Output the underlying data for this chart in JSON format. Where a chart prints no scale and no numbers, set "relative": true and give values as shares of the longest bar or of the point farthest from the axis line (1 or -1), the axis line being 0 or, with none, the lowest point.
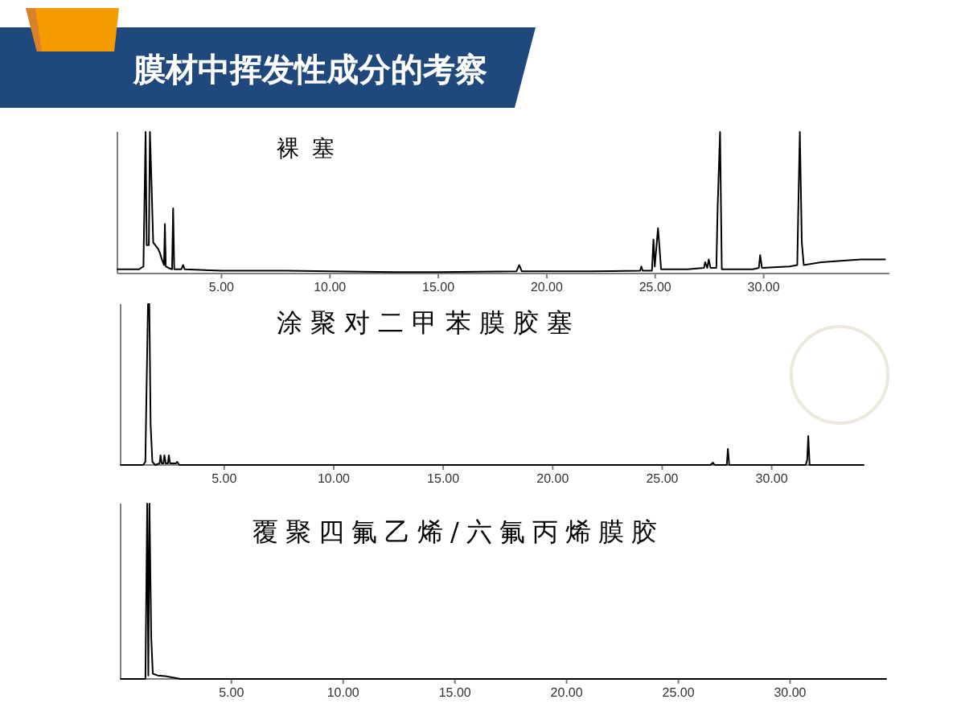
{
  "chart_data": [
    {
      "type": "other",
      "title": "膜材中挥发性成分的考察"
    },
    {
      "type": "line",
      "title": "裸塞",
      "relative": true,
      "xlim": [
        0.2,
        35.8
      ],
      "xticks": [
        {
          "value": 5,
          "label": "5.00"
        },
        {
          "value": 10,
          "label": "10.00"
        },
        {
          "value": 15,
          "label": "15.00"
        },
        {
          "value": 20,
          "label": "20.00"
        },
        {
          "value": 25,
          "label": "25.00"
        },
        {
          "value": 30,
          "label": "30.00"
        }
      ],
      "x": [
        0.2,
        1.2,
        1.4,
        1.5,
        1.55,
        1.65,
        1.7,
        1.78,
        1.85,
        1.95,
        2.05,
        2.15,
        2.25,
        2.35,
        2.39,
        2.43,
        2.55,
        2.72,
        2.77,
        2.82,
        3.15,
        3.23,
        3.3,
        5,
        8,
        10,
        13,
        15,
        18.6,
        18.73,
        18.85,
        22,
        24.3,
        24.36,
        24.42,
        24.85,
        24.92,
        24.98,
        25.13,
        25.2,
        25.27,
        26.5,
        27.25,
        27.3,
        27.4,
        27.47,
        27.55,
        27.82,
        27.88,
        27.99,
        28.07,
        29.5,
        29.78,
        29.84,
        29.92,
        31.2,
        31.55,
        31.59,
        31.67,
        31.76,
        31.85,
        32.66,
        33.55,
        34.5,
        35.6
      ],
      "series": [
        {
          "color": "#000000",
          "values": [
            0.03,
            0.03,
            0.05,
            1.0,
            0.2,
            0.2,
            1.0,
            0.6,
            0.22,
            0.2,
            0.18,
            0.15,
            0.1,
            0.06,
            0.35,
            0.05,
            0.04,
            0.03,
            0.46,
            0.03,
            0.03,
            0.06,
            0.03,
            0.02,
            0.02,
            0.015,
            0.01,
            0.01,
            0.015,
            0.06,
            0.015,
            0.015,
            0.02,
            0.05,
            0.02,
            0.02,
            0.24,
            0.05,
            0.32,
            0.18,
            0.03,
            0.03,
            0.04,
            0.08,
            0.04,
            0.1,
            0.04,
            0.04,
            0.47,
            1.0,
            0.03,
            0.03,
            0.04,
            0.13,
            0.04,
            0.05,
            0.06,
            0.39,
            1.0,
            0.22,
            0.06,
            0.08,
            0.09,
            0.1,
            0.1
          ]
        }
      ]
    },
    {
      "type": "line",
      "title": "涂聚对二甲苯膜胶塞",
      "relative": true,
      "xlim": [
        0.27,
        34.2
      ],
      "xticks": [
        {
          "value": 5,
          "label": "5.00"
        },
        {
          "value": 10,
          "label": "10.00"
        },
        {
          "value": 15,
          "label": "15.00"
        },
        {
          "value": 20,
          "label": "20.00"
        },
        {
          "value": 25,
          "label": "25.00"
        },
        {
          "value": 30,
          "label": "30.00"
        }
      ],
      "x": [
        0.27,
        1.3,
        1.4,
        1.46,
        1.52,
        1.58,
        1.64,
        1.72,
        1.85,
        2.05,
        2.09,
        2.15,
        2.23,
        2.27,
        2.33,
        2.43,
        2.47,
        2.53,
        2.8,
        2.85,
        2.95,
        27.2,
        27.32,
        27.4,
        27.95,
        28.0,
        28.06,
        31.55,
        31.62,
        31.67,
        31.73,
        34.2
      ],
      "series": [
        {
          "color": "#000000",
          "values": [
            0,
            0,
            0.02,
            0.52,
            1.0,
            1.0,
            0.25,
            0.02,
            0,
            0.01,
            0.06,
            0.01,
            0.01,
            0.06,
            0.01,
            0.01,
            0.06,
            0.01,
            0.01,
            0.02,
            0,
            0,
            0.015,
            0,
            0,
            0.1,
            0,
            0,
            0.03,
            0.18,
            0,
            0
          ]
        }
      ]
    },
    {
      "type": "line",
      "title": "覆聚四氟乙烯/六氟丙烯膜胶",
      "relative": true,
      "xlim": [
        0.04,
        34.3
      ],
      "xticks": [
        {
          "value": 5,
          "label": "5.00"
        },
        {
          "value": 10,
          "label": "10.00"
        },
        {
          "value": 15,
          "label": "15.00"
        },
        {
          "value": 20,
          "label": "20.00"
        },
        {
          "value": 25,
          "label": "25.00"
        },
        {
          "value": 30,
          "label": "30.00"
        }
      ],
      "x": [
        0.04,
        1.15,
        1.23,
        1.28,
        1.33,
        1.41,
        1.48,
        1.7,
        2.03,
        2.53,
        2.7,
        34.3
      ],
      "series": [
        {
          "color": "#000000",
          "values": [
            0,
            0,
            1.0,
            0.02,
            1.0,
            0.24,
            0.03,
            0.02,
            0.016,
            0.005,
            0,
            0
          ]
        }
      ]
    }
  ]
}
